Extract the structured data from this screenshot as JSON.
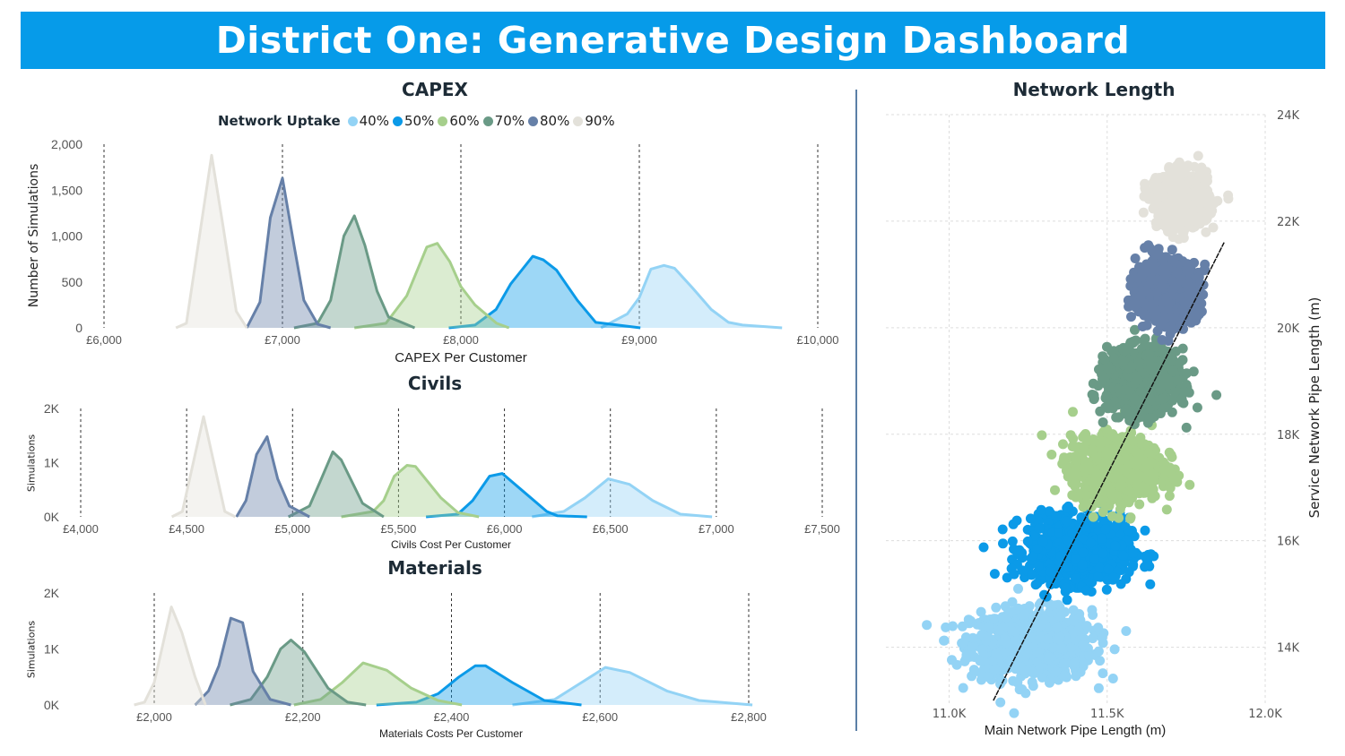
{
  "header": {
    "title": "District One: Generative Design Dashboard"
  },
  "legend": {
    "title": "Network Uptake",
    "items": [
      {
        "label": "40%",
        "color": "#93d3f5"
      },
      {
        "label": "50%",
        "color": "#0b9ae8"
      },
      {
        "label": "60%",
        "color": "#a6cf8c"
      },
      {
        "label": "70%",
        "color": "#6a9a86"
      },
      {
        "label": "80%",
        "color": "#6680a8"
      },
      {
        "label": "90%",
        "color": "#e3e1da"
      }
    ]
  },
  "chart_data": [
    {
      "type": "area",
      "title": "CAPEX",
      "xlabel": "CAPEX Per Customer",
      "ylabel": "Number of Simulations",
      "xlim": [
        6000,
        10000
      ],
      "ylim": [
        0,
        2000
      ],
      "x_ticks": [
        {
          "value": 6000,
          "label": "£6,000"
        },
        {
          "value": 7000,
          "label": "£7,000"
        },
        {
          "value": 8000,
          "label": "£8,000"
        },
        {
          "value": 9000,
          "label": "£9,000"
        },
        {
          "value": 10000,
          "label": "£10,000"
        }
      ],
      "y_ticks": [
        {
          "value": 0,
          "label": "0"
        },
        {
          "value": 500,
          "label": "500"
        },
        {
          "value": 1000,
          "label": "1,000"
        },
        {
          "value": 1500,
          "label": "1,500"
        },
        {
          "value": 2000,
          "label": "2,000"
        }
      ],
      "grid": "vertical-dashed",
      "series": [
        {
          "name": "40%",
          "points": [
            [
              8785,
              0
            ],
            [
              8932,
              150
            ],
            [
              9000,
              330
            ],
            [
              9065,
              640
            ],
            [
              9138,
              680
            ],
            [
              9197,
              650
            ],
            [
              9300,
              430
            ],
            [
              9403,
              200
            ],
            [
              9500,
              60
            ],
            [
              9579,
              30
            ],
            [
              9800,
              0
            ]
          ]
        },
        {
          "name": "50%",
          "points": [
            [
              7932,
              0
            ],
            [
              8079,
              30
            ],
            [
              8197,
              200
            ],
            [
              8280,
              480
            ],
            [
              8329,
              600
            ],
            [
              8403,
              780
            ],
            [
              8462,
              740
            ],
            [
              8535,
              630
            ],
            [
              8653,
              300
            ],
            [
              8756,
              60
            ],
            [
              9006,
              0
            ]
          ]
        },
        {
          "name": "60%",
          "points": [
            [
              7403,
              0
            ],
            [
              7580,
              50
            ],
            [
              7697,
              350
            ],
            [
              7809,
              880
            ],
            [
              7868,
              920
            ],
            [
              7938,
              720
            ],
            [
              8000,
              450
            ],
            [
              8079,
              250
            ],
            [
              8200,
              50
            ],
            [
              8270,
              0
            ]
          ]
        },
        {
          "name": "70%",
          "points": [
            [
              7065,
              0
            ],
            [
              7197,
              50
            ],
            [
              7270,
              300
            ],
            [
              7344,
              1000
            ],
            [
              7403,
              1220
            ],
            [
              7462,
              900
            ],
            [
              7530,
              400
            ],
            [
              7594,
              120
            ],
            [
              7741,
              0
            ]
          ]
        },
        {
          "name": "80%",
          "points": [
            [
              6800,
              0
            ],
            [
              6874,
              280
            ],
            [
              6932,
              1200
            ],
            [
              7000,
              1630
            ],
            [
              7065,
              900
            ],
            [
              7120,
              300
            ],
            [
              7197,
              40
            ],
            [
              7270,
              0
            ]
          ]
        },
        {
          "name": "90%",
          "points": [
            [
              6403,
              0
            ],
            [
              6462,
              50
            ],
            [
              6603,
              1880
            ],
            [
              6668,
              1100
            ],
            [
              6741,
              180
            ],
            [
              6800,
              0
            ]
          ]
        }
      ]
    },
    {
      "type": "area",
      "title": "Civils",
      "xlabel": "Civils Cost Per Customer",
      "ylabel": "Simulations",
      "xlim": [
        4000,
        7500
      ],
      "ylim": [
        0,
        2000
      ],
      "x_ticks": [
        {
          "value": 4000,
          "label": "£4,000"
        },
        {
          "value": 4500,
          "label": "£4,500"
        },
        {
          "value": 5000,
          "label": "£5,000"
        },
        {
          "value": 5500,
          "label": "£5,500"
        },
        {
          "value": 6000,
          "label": "£6,000"
        },
        {
          "value": 6500,
          "label": "£6,500"
        },
        {
          "value": 7000,
          "label": "£7,000"
        },
        {
          "value": 7500,
          "label": "£7,500"
        }
      ],
      "y_ticks": [
        {
          "value": 0,
          "label": "0K"
        },
        {
          "value": 1000,
          "label": "1K"
        },
        {
          "value": 2000,
          "label": "2K"
        }
      ],
      "grid": "vertical-dashed",
      "series": [
        {
          "name": "40%",
          "points": [
            [
              6130,
              0
            ],
            [
              6280,
              100
            ],
            [
              6380,
              350
            ],
            [
              6490,
              700
            ],
            [
              6590,
              600
            ],
            [
              6700,
              300
            ],
            [
              6830,
              50
            ],
            [
              6980,
              0
            ]
          ]
        },
        {
          "name": "50%",
          "points": [
            [
              5630,
              0
            ],
            [
              5780,
              50
            ],
            [
              5850,
              300
            ],
            [
              5930,
              750
            ],
            [
              5990,
              800
            ],
            [
              6080,
              500
            ],
            [
              6200,
              100
            ],
            [
              6250,
              20
            ],
            [
              6390,
              0
            ]
          ]
        },
        {
          "name": "60%",
          "points": [
            [
              5230,
              0
            ],
            [
              5380,
              100
            ],
            [
              5430,
              300
            ],
            [
              5480,
              750
            ],
            [
              5540,
              950
            ],
            [
              5580,
              930
            ],
            [
              5700,
              350
            ],
            [
              5780,
              80
            ],
            [
              5880,
              0
            ]
          ]
        },
        {
          "name": "70%",
          "points": [
            [
              4980,
              0
            ],
            [
              5080,
              200
            ],
            [
              5130,
              650
            ],
            [
              5190,
              1200
            ],
            [
              5230,
              1050
            ],
            [
              5330,
              250
            ],
            [
              5430,
              0
            ]
          ]
        },
        {
          "name": "80%",
          "points": [
            [
              4735,
              0
            ],
            [
              4780,
              300
            ],
            [
              4830,
              1150
            ],
            [
              4880,
              1480
            ],
            [
              4930,
              700
            ],
            [
              4985,
              200
            ],
            [
              5080,
              0
            ]
          ]
        },
        {
          "name": "90%",
          "points": [
            [
              4430,
              0
            ],
            [
              4480,
              100
            ],
            [
              4580,
              1850
            ],
            [
              4680,
              100
            ],
            [
              4730,
              0
            ]
          ]
        }
      ]
    },
    {
      "type": "area",
      "title": "Materials",
      "xlabel": "Materials Costs Per Customer",
      "ylabel": "Simulations",
      "xlim": [
        2000,
        2800
      ],
      "ylim": [
        0,
        2000
      ],
      "x_ticks": [
        {
          "value": 2000,
          "label": "£2,000"
        },
        {
          "value": 2200,
          "label": "£2,200"
        },
        {
          "value": 2400,
          "label": "£2,400"
        },
        {
          "value": 2600,
          "label": "£2,600"
        },
        {
          "value": 2800,
          "label": "£2,800"
        }
      ],
      "y_ticks": [
        {
          "value": 0,
          "label": "0K"
        },
        {
          "value": 1000,
          "label": "1K"
        },
        {
          "value": 2000,
          "label": "2K"
        }
      ],
      "grid": "vertical-dashed",
      "series": [
        {
          "name": "40%",
          "points": [
            [
              2482,
              0
            ],
            [
              2539,
              100
            ],
            [
              2575,
              400
            ],
            [
              2607,
              670
            ],
            [
              2640,
              580
            ],
            [
              2690,
              250
            ],
            [
              2733,
              80
            ],
            [
              2805,
              0
            ]
          ]
        },
        {
          "name": "50%",
          "points": [
            [
              2299,
              0
            ],
            [
              2353,
              50
            ],
            [
              2382,
              200
            ],
            [
              2410,
              500
            ],
            [
              2432,
              700
            ],
            [
              2446,
              700
            ],
            [
              2482,
              400
            ],
            [
              2525,
              80
            ],
            [
              2575,
              0
            ]
          ]
        },
        {
          "name": "60%",
          "points": [
            [
              2188,
              0
            ],
            [
              2224,
              100
            ],
            [
              2253,
              400
            ],
            [
              2281,
              750
            ],
            [
              2313,
              620
            ],
            [
              2346,
              300
            ],
            [
              2382,
              80
            ],
            [
              2414,
              0
            ]
          ]
        },
        {
          "name": "70%",
          "points": [
            [
              2102,
              0
            ],
            [
              2130,
              100
            ],
            [
              2152,
              500
            ],
            [
              2170,
              1000
            ],
            [
              2184,
              1160
            ],
            [
              2202,
              950
            ],
            [
              2234,
              300
            ],
            [
              2260,
              50
            ],
            [
              2285,
              0
            ]
          ]
        },
        {
          "name": "80%",
          "points": [
            [
              2055,
              0
            ],
            [
              2073,
              250
            ],
            [
              2087,
              700
            ],
            [
              2103,
              1550
            ],
            [
              2119,
              1470
            ],
            [
              2133,
              600
            ],
            [
              2156,
              100
            ],
            [
              2184,
              0
            ]
          ]
        },
        {
          "name": "90%",
          "points": [
            [
              1973,
              0
            ],
            [
              1987,
              50
            ],
            [
              2000,
              400
            ],
            [
              2023,
              1750
            ],
            [
              2037,
              1300
            ],
            [
              2055,
              500
            ],
            [
              2069,
              0
            ]
          ]
        }
      ]
    },
    {
      "type": "scatter",
      "title": "Network Length",
      "xlabel": "Main Network Pipe Length (m)",
      "ylabel": "Service Network Pipe Length (m)",
      "xlim": [
        10800,
        12000
      ],
      "ylim": [
        12900,
        24000
      ],
      "x_ticks": [
        {
          "value": 11000,
          "label": "11.0K"
        },
        {
          "value": 11500,
          "label": "11.5K"
        },
        {
          "value": 12000,
          "label": "12.0K"
        }
      ],
      "y_ticks": [
        {
          "value": 14000,
          "label": "14K"
        },
        {
          "value": 16000,
          "label": "16K"
        },
        {
          "value": 18000,
          "label": "18K"
        },
        {
          "value": 20000,
          "label": "20K"
        },
        {
          "value": 22000,
          "label": "22K"
        },
        {
          "value": 24000,
          "label": "24K"
        }
      ],
      "grid": "dashed",
      "y_axis_position": "right",
      "series": [
        {
          "name": "40%",
          "center": [
            11260,
            14050
          ],
          "spread": [
            95,
            320
          ],
          "count": 900
        },
        {
          "name": "50%",
          "center": [
            11410,
            15830
          ],
          "spread": [
            80,
            300
          ],
          "count": 900
        },
        {
          "name": "60%",
          "center": [
            11530,
            17350
          ],
          "spread": [
            70,
            300
          ],
          "count": 900
        },
        {
          "name": "70%",
          "center": [
            11610,
            19000
          ],
          "spread": [
            55,
            290
          ],
          "count": 900
        },
        {
          "name": "80%",
          "center": [
            11690,
            20700
          ],
          "spread": [
            48,
            280
          ],
          "count": 900
        },
        {
          "name": "90%",
          "center": [
            11740,
            22400
          ],
          "spread": [
            40,
            250
          ],
          "count": 900
        }
      ],
      "trendline": [
        [
          11140,
          13000
        ],
        [
          11870,
          21600
        ]
      ]
    }
  ]
}
